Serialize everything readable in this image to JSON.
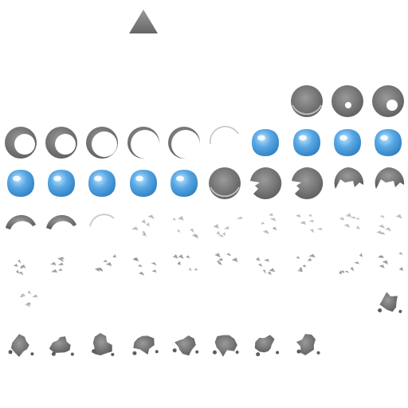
{
  "sprite_sheet": {
    "marker": {
      "icon": "triangle-up-icon",
      "color": "#7f7f7f"
    },
    "colors": {
      "gray_fill": "#9a9a9a",
      "gray_dark": "#5c5c5c",
      "gray_light": "#e0e0e0",
      "blue_fill": "#5aa9e6",
      "blue_dark": "#2f7fc0",
      "blue_light": "#bfe3fb"
    },
    "rows": [
      {
        "row": 1,
        "frames": [
          "gray-disc",
          "gray-disc-hole-small",
          "gray-disc-hole-large"
        ]
      },
      {
        "row": 2,
        "frames": [
          "ring-thick",
          "ring-thick",
          "ring-medium",
          "ring-thin",
          "ring-thin",
          "ring-faint",
          "blue-orb",
          "blue-orb",
          "blue-orb",
          "blue-orb"
        ]
      },
      {
        "row": 3,
        "frames": [
          "blue-orb",
          "blue-orb",
          "blue-orb",
          "blue-orb",
          "blue-orb",
          "gray-disc",
          "gray-disc-chipped",
          "gray-disc-chipped",
          "gray-disc-bitten",
          "gray-disc-bitten"
        ]
      },
      {
        "row": 4,
        "frames": [
          "arc-fragment",
          "arc-fragment",
          "arc-faint",
          "specks",
          "specks",
          "specks",
          "specks",
          "specks",
          "specks",
          "specks"
        ]
      },
      {
        "row": 5,
        "frames": [
          "debris",
          "debris",
          "debris",
          "debris",
          "debris",
          "debris",
          "debris",
          "debris",
          "debris",
          "debris"
        ]
      },
      {
        "row": 6,
        "frames": [
          "debris-faint",
          "rock-cluster"
        ]
      },
      {
        "row": 7,
        "frames": [
          "rock-cluster",
          "rock-cluster",
          "rock-cluster",
          "rock-cluster",
          "rock-cluster",
          "rock-cluster",
          "rock-cluster",
          "rock-cluster"
        ]
      }
    ]
  }
}
